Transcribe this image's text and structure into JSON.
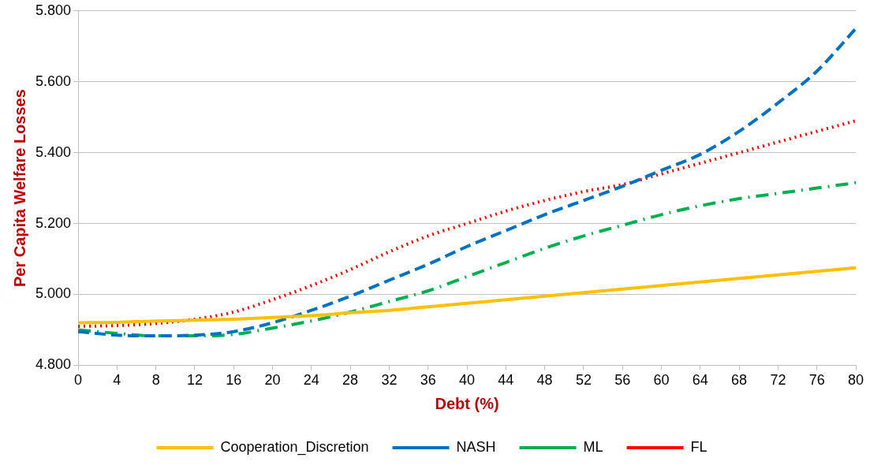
{
  "chart_data": {
    "type": "line",
    "xlabel": "Debt (%)",
    "ylabel": "Per Capita Welfare Losses",
    "x": [
      0,
      4,
      8,
      12,
      16,
      20,
      24,
      28,
      32,
      36,
      40,
      44,
      48,
      52,
      56,
      60,
      64,
      68,
      72,
      76,
      80
    ],
    "xlim": [
      0,
      80
    ],
    "xticks": [
      0,
      4,
      8,
      12,
      16,
      20,
      24,
      28,
      32,
      36,
      40,
      44,
      48,
      52,
      56,
      60,
      64,
      68,
      72,
      76,
      80
    ],
    "ylim": [
      4.8,
      5.8
    ],
    "yticks": [
      {
        "value": 4.8,
        "label": "4.800"
      },
      {
        "value": 5.0,
        "label": "5.000"
      },
      {
        "value": 5.2,
        "label": "5.200"
      },
      {
        "value": 5.4,
        "label": "5.400"
      },
      {
        "value": 5.6,
        "label": "5.600"
      },
      {
        "value": 5.8,
        "label": "5.800"
      }
    ],
    "grid": "y",
    "legend": "bottom",
    "marker": "none",
    "series": [
      {
        "name": "Cooperation_Discretion",
        "color": "#ffc000",
        "line_style": "solid",
        "values": [
          4.92,
          4.921,
          4.925,
          4.927,
          4.93,
          4.935,
          4.94,
          4.948,
          4.955,
          4.965,
          4.975,
          4.985,
          4.995,
          5.005,
          5.015,
          5.025,
          5.035,
          5.045,
          5.055,
          5.065,
          5.075
        ]
      },
      {
        "name": "NASH",
        "color": "#0070c0",
        "line_style": "dashed",
        "values": [
          4.895,
          4.885,
          4.883,
          4.885,
          4.895,
          4.92,
          4.955,
          4.995,
          5.04,
          5.085,
          5.135,
          5.18,
          5.225,
          5.265,
          5.305,
          5.35,
          5.395,
          5.46,
          5.54,
          5.63,
          5.75
        ]
      },
      {
        "name": "ML",
        "color": "#00b050",
        "line_style": "dashdot",
        "values": [
          4.9,
          4.89,
          4.883,
          4.883,
          4.887,
          4.905,
          4.925,
          4.95,
          4.98,
          5.01,
          5.05,
          5.09,
          5.13,
          5.165,
          5.195,
          5.225,
          5.25,
          5.27,
          5.285,
          5.3,
          5.315
        ]
      },
      {
        "name": "FL",
        "color": "#ff0000",
        "line_style": "dotted",
        "values": [
          4.91,
          4.912,
          4.918,
          4.93,
          4.95,
          4.985,
          5.025,
          5.07,
          5.12,
          5.165,
          5.2,
          5.235,
          5.265,
          5.29,
          5.31,
          5.34,
          5.37,
          5.4,
          5.43,
          5.46,
          5.49
        ]
      }
    ]
  }
}
